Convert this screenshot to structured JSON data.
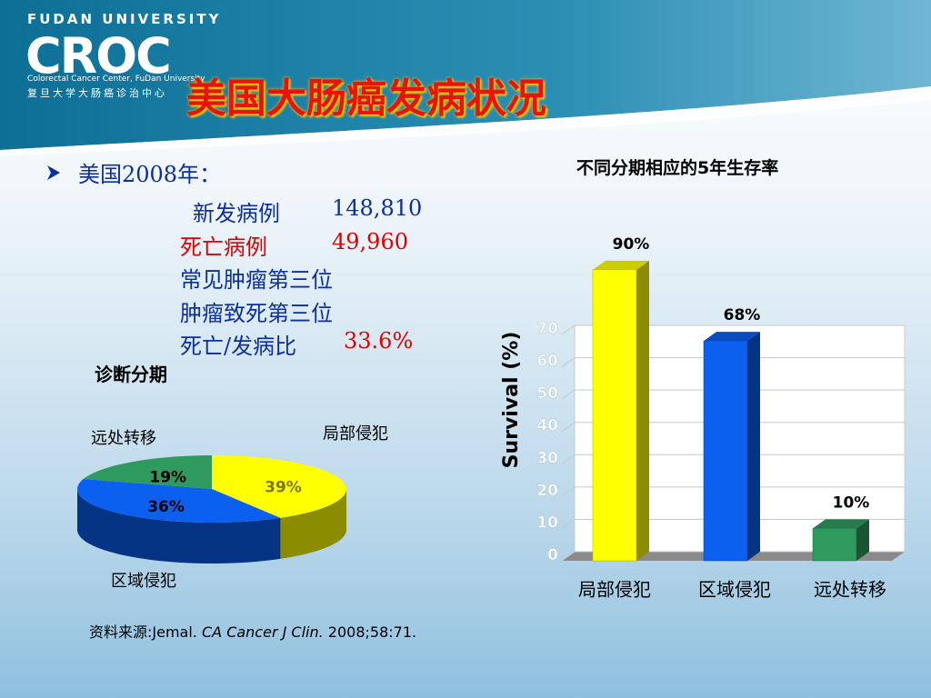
{
  "header": {
    "university": "FUDAN UNIVERSITY",
    "logo": "CROC",
    "center_en": "Colorectal Cancer Center, FuDan University",
    "center_cn": "复旦大学大肠癌诊治中心",
    "title": "美国大肠癌发病状况"
  },
  "bullet": {
    "heading": "美国2008年：",
    "lines": [
      {
        "label": "新发病例",
        "value": "148,810"
      },
      {
        "label": "死亡病例",
        "value": "49,960"
      },
      {
        "label": "常见肿瘤第三位"
      },
      {
        "label": "肿瘤致死第三位"
      },
      {
        "label": "死亡/发病比",
        "value": "33.6%"
      }
    ]
  },
  "source": {
    "prefix": "资料来源:Jemal.",
    "journal": "CA Cancer J Clin.",
    "citation": "2008;58:71."
  },
  "chart_data": [
    {
      "type": "pie",
      "title": "诊断分期",
      "categories": [
        "局部侵犯",
        "区域侵犯",
        "远处转移"
      ],
      "values": [
        39,
        36,
        19
      ],
      "value_labels": [
        "39%",
        "36%",
        "19%"
      ],
      "colors": [
        "#ffff00",
        "#0b60f0",
        "#2f9a5e"
      ]
    },
    {
      "type": "bar",
      "title": "不同分期相应的5年生存率",
      "y_label": "Survival (%)",
      "categories": [
        "局部侵犯",
        "区域侵犯",
        "远处转移"
      ],
      "values": [
        90,
        68,
        10
      ],
      "value_labels": [
        "90%",
        "68%",
        "10%"
      ],
      "colors": [
        "#ffff00",
        "#0b60f0",
        "#2f9a5e"
      ],
      "ylim": [
        0,
        70
      ],
      "yticks": [
        0,
        10,
        20,
        30,
        40,
        50,
        60,
        70
      ],
      "grid": true
    }
  ]
}
